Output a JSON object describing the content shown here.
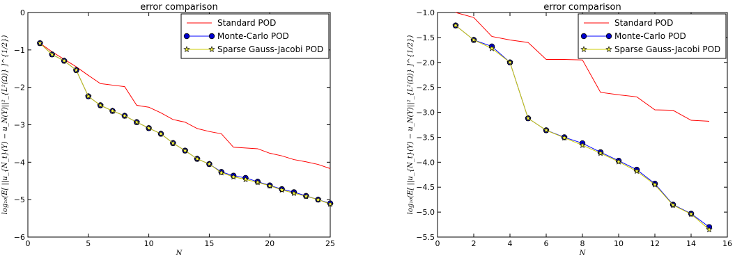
{
  "chart_data": [
    {
      "type": "line",
      "title": "error comparison",
      "xlabel": "N",
      "ylabel": "log₁₀(E[ ||u_{N_t}(Y) − u_N(Y)||²_{L²(Ω)} ]^{1/2})",
      "xlim": [
        0,
        25
      ],
      "ylim": [
        -6,
        0
      ],
      "xticks": [
        "0",
        "5",
        "10",
        "15",
        "20",
        "25"
      ],
      "yticks": [
        "0",
        "−1",
        "−2",
        "−3",
        "−4",
        "−5",
        "−6"
      ],
      "legend_position": "top-right",
      "series": [
        {
          "name": "Standard POD",
          "color": "#ff0000",
          "marker": "none",
          "x": [
            1,
            2,
            3,
            4,
            5,
            6,
            7,
            8,
            9,
            10,
            11,
            12,
            13,
            14,
            15,
            16,
            17,
            18,
            19,
            20,
            21,
            22,
            23,
            24,
            25
          ],
          "y": [
            -0.82,
            -1.05,
            -1.25,
            -1.45,
            -1.68,
            -1.9,
            -1.94,
            -1.98,
            -2.48,
            -2.53,
            -2.68,
            -2.86,
            -2.93,
            -3.1,
            -3.18,
            -3.24,
            -3.6,
            -3.62,
            -3.64,
            -3.76,
            -3.83,
            -3.93,
            -3.99,
            -4.06,
            -4.17
          ]
        },
        {
          "name": "Monte-Carlo POD",
          "color": "#0000ff",
          "marker": "circle",
          "x": [
            1,
            2,
            3,
            4,
            5,
            6,
            7,
            8,
            9,
            10,
            11,
            12,
            13,
            14,
            15,
            16,
            17,
            18,
            19,
            20,
            21,
            22,
            23,
            24,
            25
          ],
          "y": [
            -0.82,
            -1.12,
            -1.29,
            -1.54,
            -2.24,
            -2.48,
            -2.63,
            -2.76,
            -2.93,
            -3.09,
            -3.24,
            -3.49,
            -3.69,
            -3.91,
            -4.05,
            -4.26,
            -4.36,
            -4.42,
            -4.52,
            -4.62,
            -4.72,
            -4.8,
            -4.9,
            -5.0,
            -5.1
          ]
        },
        {
          "name": "Sparse Gauss-Jacobi POD",
          "color": "#cccc00",
          "marker": "star",
          "x": [
            1,
            2,
            3,
            4,
            5,
            6,
            7,
            8,
            9,
            10,
            11,
            12,
            13,
            14,
            15,
            16,
            17,
            18,
            19,
            20,
            21,
            22,
            23,
            24,
            25
          ],
          "y": [
            -0.82,
            -1.12,
            -1.29,
            -1.54,
            -2.24,
            -2.48,
            -2.63,
            -2.76,
            -2.93,
            -3.09,
            -3.24,
            -3.49,
            -3.69,
            -3.91,
            -4.05,
            -4.28,
            -4.39,
            -4.46,
            -4.54,
            -4.63,
            -4.74,
            -4.83,
            -4.91,
            -5.0,
            -5.12
          ]
        }
      ]
    },
    {
      "type": "line",
      "title": "error comparison",
      "xlabel": "N",
      "ylabel": "log₁₀(E[ ||u_{N_t}(Y) − u_N(Y)||²_{L²(Ω)} ]^{1/2})",
      "xlim": [
        0,
        16
      ],
      "ylim": [
        -5.5,
        -1.0
      ],
      "xticks": [
        "0",
        "2",
        "4",
        "6",
        "8",
        "10",
        "12",
        "14",
        "16"
      ],
      "yticks": [
        "−1.0",
        "−1.5",
        "−2.0",
        "−2.5",
        "−3.0",
        "−3.5",
        "−4.0",
        "−4.5",
        "−5.0",
        "−5.5"
      ],
      "legend_position": "top-right",
      "series": [
        {
          "name": "Standard POD",
          "color": "#ff0000",
          "marker": "none",
          "x": [
            1,
            2,
            3,
            4,
            5,
            6,
            7,
            8,
            9,
            10,
            11,
            12,
            13,
            14,
            15
          ],
          "y": [
            -1.0,
            -1.1,
            -1.48,
            -1.55,
            -1.6,
            -1.94,
            -1.94,
            -1.95,
            -2.6,
            -2.65,
            -2.69,
            -2.95,
            -2.96,
            -3.16,
            -3.18
          ]
        },
        {
          "name": "Monte-Carlo POD",
          "color": "#0000ff",
          "marker": "circle",
          "x": [
            1,
            2,
            3,
            4,
            5,
            6,
            7,
            8,
            9,
            10,
            11,
            12,
            13,
            14,
            15
          ],
          "y": [
            -1.26,
            -1.55,
            -1.68,
            -2.0,
            -3.12,
            -3.36,
            -3.5,
            -3.62,
            -3.8,
            -3.97,
            -4.15,
            -4.43,
            -4.85,
            -5.03,
            -5.3
          ]
        },
        {
          "name": "Sparse Gauss-Jacobi POD",
          "color": "#cccc00",
          "marker": "star",
          "x": [
            1,
            2,
            3,
            4,
            5,
            6,
            7,
            8,
            9,
            10,
            11,
            12,
            13,
            14,
            15
          ],
          "y": [
            -1.26,
            -1.55,
            -1.72,
            -2.0,
            -3.12,
            -3.36,
            -3.51,
            -3.66,
            -3.82,
            -3.99,
            -4.18,
            -4.45,
            -4.86,
            -5.04,
            -5.35
          ]
        }
      ]
    }
  ]
}
